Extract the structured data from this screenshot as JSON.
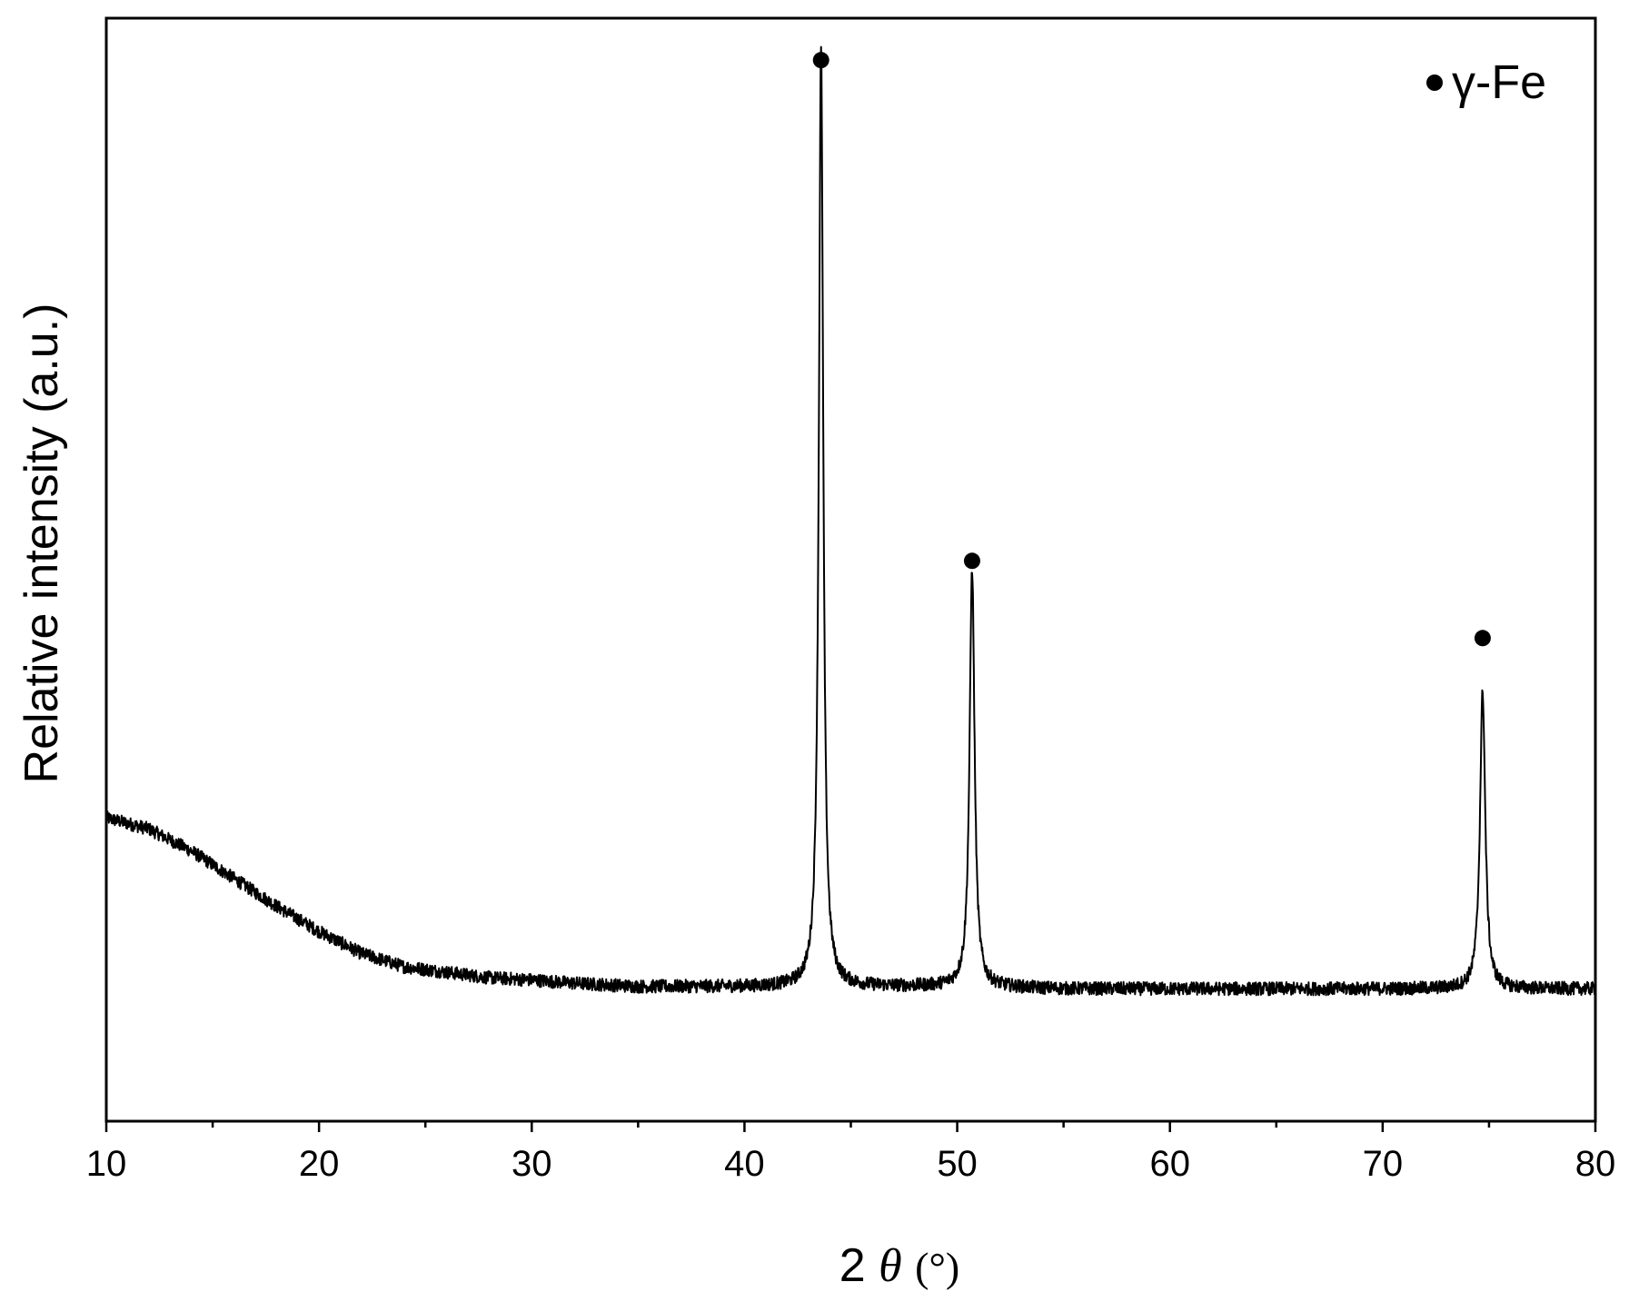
{
  "chart_data": {
    "type": "line",
    "xlabel_prefix": "2",
    "xlabel_symbol": "θ",
    "xlabel_unit": " (°)",
    "ylabel": "Relative intensity (a.u.)",
    "xlim": [
      10,
      80
    ],
    "ylim": [
      0,
      100
    ],
    "x_ticks": [
      10,
      20,
      30,
      40,
      50,
      60,
      70,
      80
    ],
    "x_minor_step": 5,
    "y_tick_labels": false,
    "grid": false,
    "legend": {
      "position": "top-right",
      "marker": "circle",
      "label": "γ-Fe"
    },
    "series": [
      {
        "color": "#000000",
        "baseline_points": [
          [
            10,
            27.5
          ],
          [
            12,
            26.5
          ],
          [
            14,
            24.5
          ],
          [
            16,
            22.0
          ],
          [
            18,
            19.5
          ],
          [
            20,
            17.2
          ],
          [
            22,
            15.2
          ],
          [
            24,
            14.0
          ],
          [
            26,
            13.5
          ],
          [
            28,
            13.0
          ],
          [
            30,
            12.8
          ],
          [
            32,
            12.5
          ],
          [
            35,
            12.2
          ],
          [
            40,
            12.2
          ],
          [
            45,
            12.2
          ],
          [
            50,
            12.2
          ],
          [
            55,
            12.0
          ],
          [
            60,
            12.0
          ],
          [
            65,
            12.0
          ],
          [
            70,
            12.0
          ],
          [
            75,
            12.0
          ],
          [
            80,
            12.0
          ]
        ],
        "peaks": [
          {
            "x": 43.6,
            "height": 85.0,
            "width": 0.25
          },
          {
            "x": 50.7,
            "height": 38.0,
            "width": 0.28
          },
          {
            "x": 74.7,
            "height": 27.0,
            "width": 0.3
          }
        ],
        "noise_amplitude": 0.6
      }
    ],
    "peak_markers": [
      {
        "x": 43.6,
        "y": 96.2,
        "phase": "γ-Fe"
      },
      {
        "x": 50.7,
        "y": 50.8,
        "phase": "γ-Fe"
      },
      {
        "x": 74.7,
        "y": 43.8,
        "phase": "γ-Fe"
      }
    ],
    "marker_color": "#000000"
  }
}
